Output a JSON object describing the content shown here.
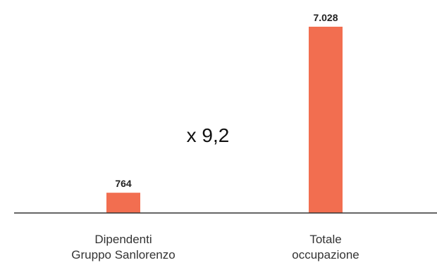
{
  "chart_data": {
    "type": "bar",
    "categories": [
      [
        "Dipendenti",
        "Gruppo Sanlorenzo"
      ],
      [
        "Totale",
        "occupazione"
      ]
    ],
    "values": [
      764,
      7028
    ],
    "value_labels": [
      "764",
      "7.028"
    ],
    "annotation": "x 9,2",
    "title": "",
    "xlabel": "",
    "ylabel": "",
    "ylim": [
      0,
      7028
    ],
    "grid": false,
    "legend": "none",
    "bar_color": "#F26E50",
    "axis_color": "#333333"
  }
}
